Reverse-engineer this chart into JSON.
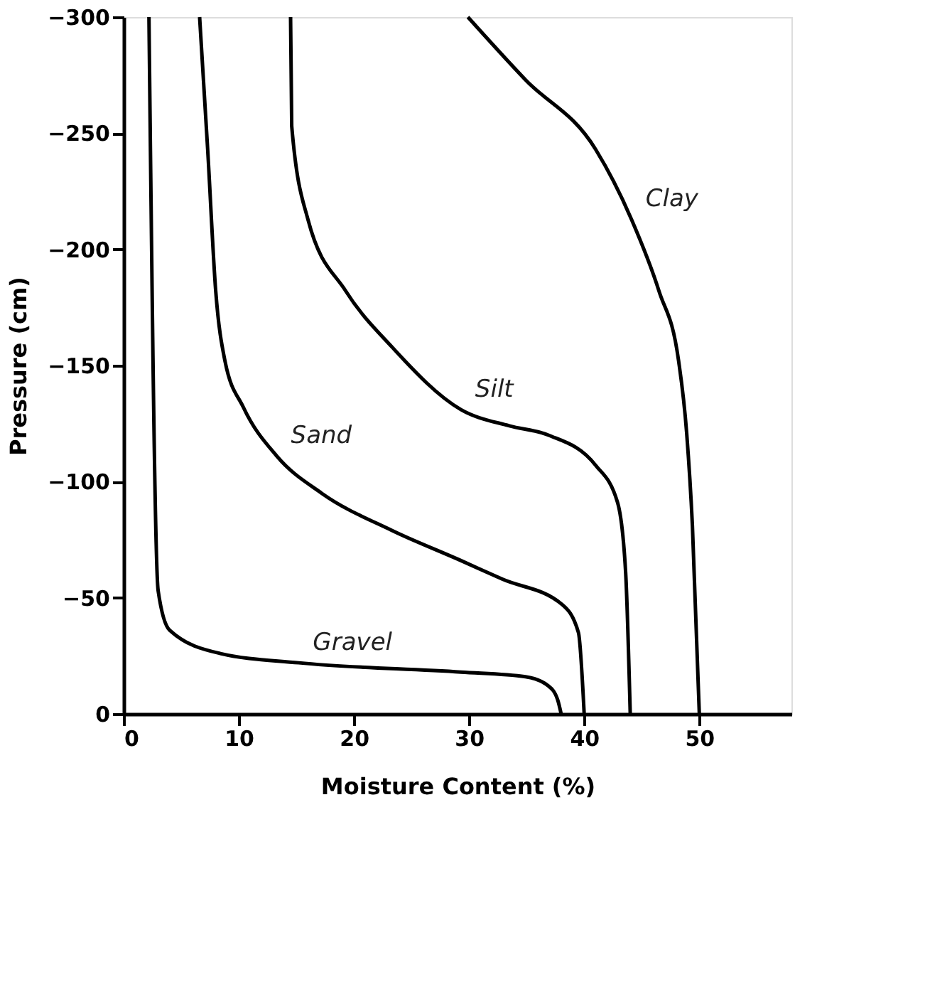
{
  "chart_data": {
    "type": "line",
    "xlabel": "Moisture Content (%)",
    "ylabel": "Pressure (cm)",
    "xlim": [
      0,
      58
    ],
    "ylim": [
      0,
      -300
    ],
    "xticks": [
      0,
      10,
      20,
      30,
      40,
      50
    ],
    "yticks": [
      0,
      -50,
      -100,
      -150,
      -200,
      -250,
      -300
    ],
    "grid": false,
    "legend": false,
    "marker": "none",
    "line_style": "solid",
    "series": [
      {
        "name": "Gravel",
        "color": "#000000",
        "x": [
          2.2,
          3.0,
          4.0,
          8.4,
          15.2,
          29.3,
          34.9,
          36.9,
          37.7,
          38
        ],
        "values": [
          -300,
          -53,
          -36,
          -26,
          -22,
          -18,
          -16,
          -12,
          -6,
          0
        ]
      },
      {
        "name": "Sand",
        "color": "#000000",
        "x": [
          6.6,
          7.3,
          8.0,
          8.8,
          10.4,
          13.3,
          17.2,
          23.3,
          29.3,
          32.9,
          38.1,
          39.5,
          40
        ],
        "values": [
          -300,
          -243,
          -182,
          -152,
          -132,
          -111,
          -95,
          -79,
          -66,
          -58,
          -47,
          -35,
          0
        ]
      },
      {
        "name": "Silt",
        "color": "#000000",
        "x": [
          14.5,
          14.6,
          16.0,
          19.3,
          23.3,
          29.3,
          33.5,
          36.9,
          41.0,
          42.9,
          43.6,
          44
        ],
        "values": [
          -300,
          -253,
          -213,
          -182,
          -158,
          -131,
          -124,
          -120,
          -107,
          -91,
          -61,
          0
        ]
      },
      {
        "name": "Clay",
        "color": "#000000",
        "x": [
          29.9,
          34.9,
          41.0,
          44.1,
          46.5,
          48.2,
          48.9,
          49.4,
          50
        ],
        "values": [
          -300,
          -273,
          -243,
          -213,
          -182,
          -152,
          -121,
          -81,
          0
        ]
      }
    ]
  }
}
